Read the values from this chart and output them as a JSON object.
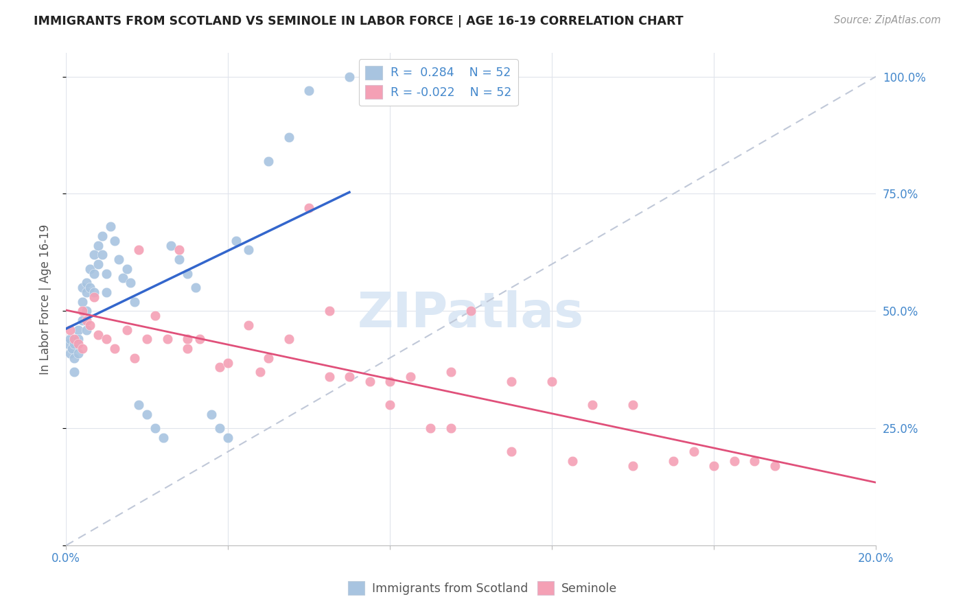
{
  "title": "IMMIGRANTS FROM SCOTLAND VS SEMINOLE IN LABOR FORCE | AGE 16-19 CORRELATION CHART",
  "source": "Source: ZipAtlas.com",
  "ylabel": "In Labor Force | Age 16-19",
  "xlim": [
    0.0,
    0.2
  ],
  "ylim": [
    0.0,
    1.05
  ],
  "ytick_vals": [
    0.0,
    0.25,
    0.5,
    0.75,
    1.0
  ],
  "xtick_vals": [
    0.0,
    0.04,
    0.08,
    0.12,
    0.16,
    0.2
  ],
  "scotland_color": "#a8c4e0",
  "seminole_color": "#f4a0b5",
  "trend_scotland_color": "#3366cc",
  "trend_seminole_color": "#e0507a",
  "diagonal_color": "#c0c8d8",
  "background_color": "#ffffff",
  "grid_color": "#e0e4ec",
  "scotland_x": [
    0.0005,
    0.001,
    0.001,
    0.0015,
    0.002,
    0.002,
    0.002,
    0.003,
    0.003,
    0.003,
    0.004,
    0.004,
    0.004,
    0.005,
    0.005,
    0.005,
    0.005,
    0.006,
    0.006,
    0.007,
    0.007,
    0.007,
    0.008,
    0.008,
    0.009,
    0.009,
    0.01,
    0.01,
    0.011,
    0.012,
    0.013,
    0.014,
    0.015,
    0.016,
    0.017,
    0.018,
    0.02,
    0.022,
    0.024,
    0.026,
    0.028,
    0.03,
    0.032,
    0.036,
    0.038,
    0.04,
    0.042,
    0.045,
    0.05,
    0.055,
    0.06,
    0.07
  ],
  "scotland_y": [
    0.43,
    0.44,
    0.41,
    0.42,
    0.43,
    0.4,
    0.37,
    0.46,
    0.44,
    0.41,
    0.55,
    0.52,
    0.48,
    0.56,
    0.54,
    0.5,
    0.46,
    0.59,
    0.55,
    0.62,
    0.58,
    0.54,
    0.64,
    0.6,
    0.66,
    0.62,
    0.58,
    0.54,
    0.68,
    0.65,
    0.61,
    0.57,
    0.59,
    0.56,
    0.52,
    0.3,
    0.28,
    0.25,
    0.23,
    0.64,
    0.61,
    0.58,
    0.55,
    0.28,
    0.25,
    0.23,
    0.65,
    0.63,
    0.82,
    0.87,
    0.97,
    1.0
  ],
  "seminole_x": [
    0.001,
    0.002,
    0.003,
    0.004,
    0.004,
    0.005,
    0.006,
    0.007,
    0.008,
    0.01,
    0.012,
    0.015,
    0.017,
    0.018,
    0.02,
    0.022,
    0.025,
    0.028,
    0.03,
    0.033,
    0.038,
    0.04,
    0.045,
    0.048,
    0.055,
    0.06,
    0.065,
    0.07,
    0.075,
    0.08,
    0.085,
    0.09,
    0.095,
    0.1,
    0.11,
    0.12,
    0.13,
    0.14,
    0.15,
    0.155,
    0.16,
    0.165,
    0.17,
    0.175,
    0.03,
    0.05,
    0.065,
    0.08,
    0.095,
    0.11,
    0.125,
    0.14
  ],
  "seminole_y": [
    0.46,
    0.44,
    0.43,
    0.42,
    0.5,
    0.48,
    0.47,
    0.53,
    0.45,
    0.44,
    0.42,
    0.46,
    0.4,
    0.63,
    0.44,
    0.49,
    0.44,
    0.63,
    0.42,
    0.44,
    0.38,
    0.39,
    0.47,
    0.37,
    0.44,
    0.72,
    0.5,
    0.36,
    0.35,
    0.35,
    0.36,
    0.25,
    0.37,
    0.5,
    0.35,
    0.35,
    0.3,
    0.3,
    0.18,
    0.2,
    0.17,
    0.18,
    0.18,
    0.17,
    0.44,
    0.4,
    0.36,
    0.3,
    0.25,
    0.2,
    0.18,
    0.17
  ],
  "watermark_text": "ZIPatlas",
  "watermark_color": "#dce8f5"
}
